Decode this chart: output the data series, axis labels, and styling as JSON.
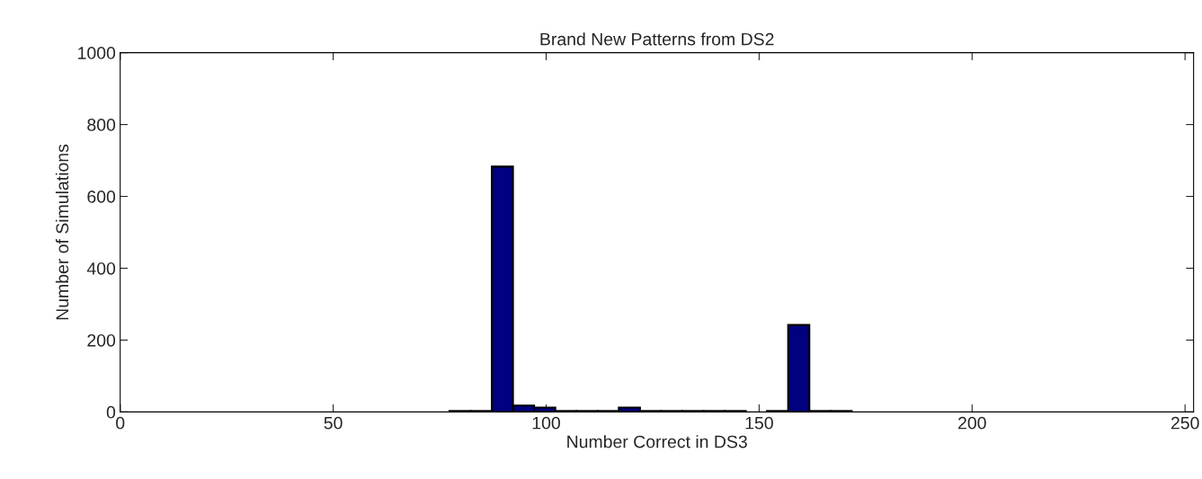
{
  "chart_data": {
    "type": "histogram",
    "title": "Brand New Patterns from DS2",
    "xlabel": "Number Correct in DS3",
    "ylabel": "Number of Simulations",
    "bins": [
      77.3,
      82.27,
      87.24,
      92.21,
      97.18,
      102.15,
      107.12,
      112.09,
      117.06,
      122.03,
      127.0,
      131.97,
      136.94,
      141.91,
      146.88,
      151.85,
      156.82,
      161.79,
      166.76,
      171.73
    ],
    "values": [
      3,
      3,
      683,
      18,
      12,
      3,
      3,
      3,
      12,
      3,
      3,
      3,
      3,
      3,
      0,
      3,
      242,
      3,
      3
    ],
    "color": "#000080",
    "xlim": [
      0,
      252
    ],
    "ylim": [
      0,
      1000
    ],
    "xticks": [
      0,
      50,
      100,
      150,
      200,
      250
    ],
    "yticks": [
      0,
      200,
      400,
      600,
      800,
      1000
    ],
    "grid": false
  }
}
